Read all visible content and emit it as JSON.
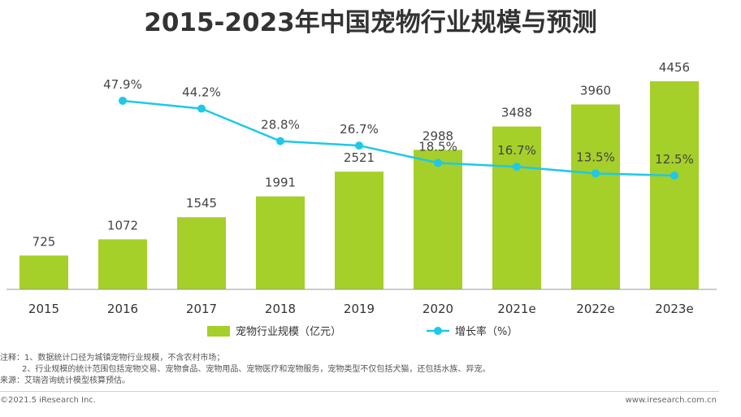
{
  "header": {
    "title": "2015-2023年中国宠物行业规模与预测"
  },
  "chart_data": {
    "type": "bar",
    "categories": [
      "2015",
      "2016",
      "2017",
      "2018",
      "2019",
      "2020",
      "2021e",
      "2022e",
      "2023e"
    ],
    "series": [
      {
        "name": "宠物行业规模（亿元）",
        "type": "bar",
        "values": [
          725,
          1072,
          1545,
          1991,
          2521,
          2988,
          3488,
          3960,
          4456
        ],
        "labels": [
          "725",
          "1072",
          "1545",
          "1991",
          "2521",
          "2988",
          "3488",
          "3960",
          "4456"
        ],
        "color": "#a5cf29"
      },
      {
        "name": "增长率（%）",
        "type": "line",
        "values": [
          null,
          47.9,
          44.2,
          28.8,
          26.7,
          18.5,
          16.7,
          13.5,
          12.5
        ],
        "labels": [
          "",
          "47.9%",
          "44.2%",
          "28.8%",
          "26.7%",
          "18.5%",
          "16.7%",
          "13.5%",
          "12.5%"
        ],
        "color": "#1ec8e8"
      }
    ],
    "title": "2015-2023年中国宠物行业规模与预测",
    "xlabel": "",
    "ylabel": "",
    "grid": false,
    "legend_position": "bottom"
  },
  "notes": {
    "note1": "注释：1、数据统计口径为城镇宠物行业规模，不含农村市场；",
    "note2": "2、行业规模的统计范围包括宠物交易、宠物食品、宠物用品、宠物医疗和宠物服务，宠物类型不仅包括犬猫，还包括水族、异宠。",
    "source": "来源：艾瑞咨询统计模型核算预估。"
  },
  "footer": {
    "copyright": "©2021.5 iResearch Inc.",
    "website": "www.iresearch.com.cn"
  }
}
